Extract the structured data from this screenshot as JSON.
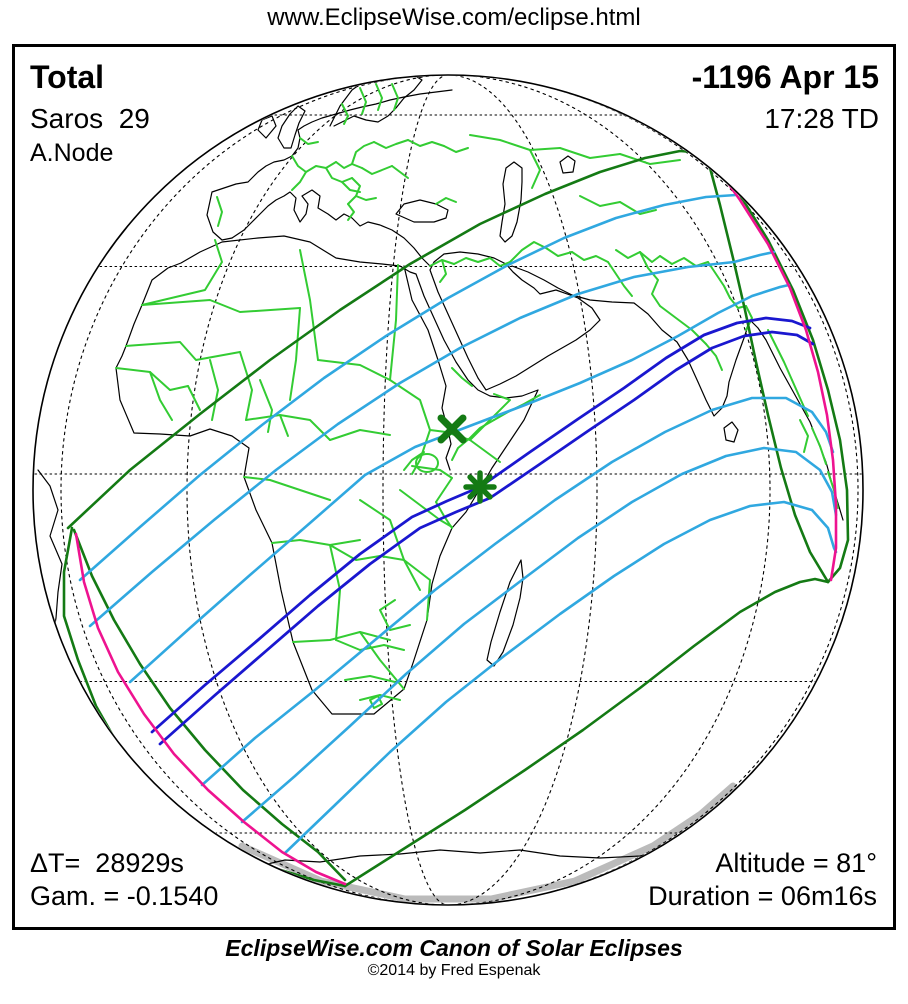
{
  "page": {
    "header_url": "www.EclipseWise.com/eclipse.html"
  },
  "panel": {
    "top_left": {
      "eclipse_type": "Total",
      "saros": "Saros  29",
      "node": "A.Node"
    },
    "top_right": {
      "date": "-1196 Apr 15",
      "time": "17:28 TD"
    },
    "bottom_left": {
      "delta_t": "ΔT=  28929s",
      "gamma": "Gam. = -0.1540"
    },
    "bottom_right": {
      "altitude": "Altitude = 81°",
      "duration": "Duration = 06m16s"
    }
  },
  "footer": {
    "caption": "EclipseWise.com Canon of Solar Eclipses",
    "copyright": "©2014 by Fred Espenak"
  },
  "values": {
    "eclipse_type": "Total",
    "saros_number": 29,
    "node": "A.Node",
    "date": "-1196 Apr 15",
    "time_td": "17:28 TD",
    "delta_t_seconds": 28929,
    "gamma": -0.154,
    "altitude_deg": 81,
    "duration": "06m16s"
  },
  "marks": {
    "greatest_eclipse": "asterisk-mark",
    "greatest_duration": "x-mark"
  },
  "colors": {
    "background": "#ffffff",
    "text": "#000000",
    "coastline": "#000000",
    "country_border_green": "#33cc33",
    "eclipse_limit_green": "#147a14",
    "central_line_blue": "#1a17cf",
    "magnitude_line_cyan": "#30a8e0",
    "rise_set_magenta": "#ee1390",
    "limb_shading_gray": "#bbbbbb",
    "graticule": "#000000",
    "panel_border": "#000000"
  }
}
